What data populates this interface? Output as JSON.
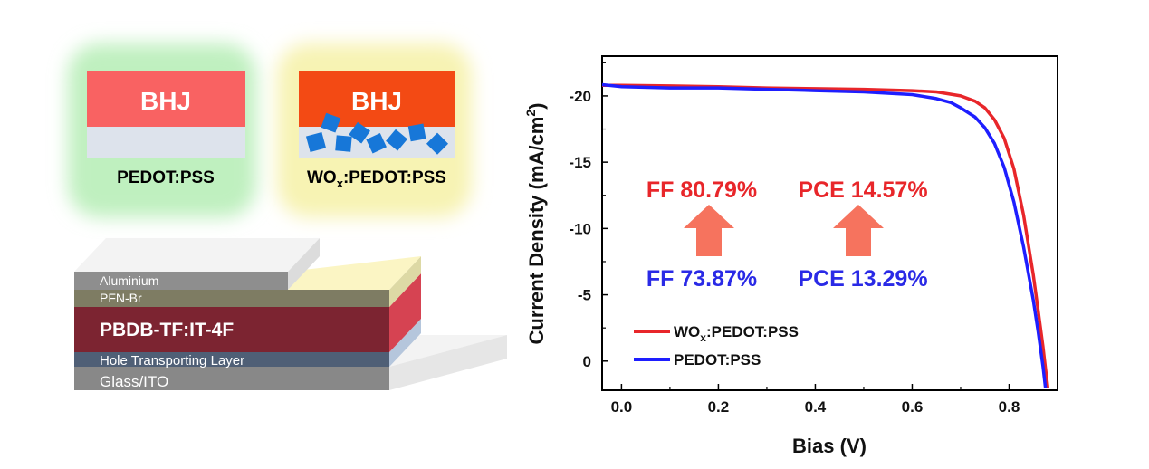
{
  "panels": [
    {
      "bhj_label": "BHJ",
      "caption_main": "PEDOT:PSS",
      "caption_sub": "",
      "caption_rest": "",
      "glow_color": "#bff0bf",
      "bhj_color": "#f96262",
      "base_color": "#dde3ec"
    },
    {
      "bhj_label": "BHJ",
      "caption_main": "WO",
      "caption_sub": "x",
      "caption_rest": ":PEDOT:PSS",
      "glow_color": "#f7f3b3",
      "bhj_color": "#f34a14",
      "base_color": "#dde3ec",
      "particle_color": "#1777d8"
    }
  ],
  "device_layers": [
    {
      "label": "Aluminium",
      "color": "#8e8e8e"
    },
    {
      "label": "PFN-Br",
      "color": "#7e7c63"
    },
    {
      "label": "PBDB-TF:IT-4F",
      "color": "#7c2431"
    },
    {
      "label": "Hole Transporting Layer",
      "color": "#4f5f76"
    },
    {
      "label": "Glass/ITO",
      "color": "#888888"
    }
  ],
  "chart_data": {
    "type": "line",
    "xlabel": "Bias (V)",
    "ylabel_main": "Current Density (mA/cm",
    "ylabel_sup": "2",
    "ylabel_close": ")",
    "xlim": [
      -0.04,
      0.9
    ],
    "ylim": [
      2.2,
      -23
    ],
    "x_ticks": [
      0.0,
      0.2,
      0.4,
      0.6,
      0.8
    ],
    "x_tick_labels": [
      "0.0",
      "0.2",
      "0.4",
      "0.6",
      "0.8"
    ],
    "y_ticks": [
      -20,
      -15,
      -10,
      -5,
      0
    ],
    "y_tick_labels": [
      "-20",
      "-15",
      "-10",
      "-5",
      "0"
    ],
    "series": [
      {
        "name": "WO",
        "name_sub": "x",
        "name_rest": ":PEDOT:PSS",
        "color": "#e8262a",
        "x": [
          -0.04,
          0.0,
          0.1,
          0.2,
          0.3,
          0.4,
          0.5,
          0.6,
          0.65,
          0.7,
          0.73,
          0.75,
          0.77,
          0.79,
          0.81,
          0.83,
          0.85,
          0.86,
          0.87,
          0.875,
          0.88
        ],
        "y": [
          -20.8,
          -20.8,
          -20.75,
          -20.7,
          -20.6,
          -20.55,
          -20.5,
          -20.4,
          -20.3,
          -20.0,
          -19.6,
          -19.1,
          -18.2,
          -16.8,
          -14.5,
          -11.0,
          -6.5,
          -3.8,
          -1.1,
          0.5,
          2.0
        ]
      },
      {
        "name": "PEDOT:PSS",
        "color": "#1e1eff",
        "x": [
          -0.04,
          0.0,
          0.1,
          0.2,
          0.3,
          0.4,
          0.5,
          0.6,
          0.65,
          0.68,
          0.7,
          0.73,
          0.75,
          0.77,
          0.79,
          0.81,
          0.83,
          0.85,
          0.86,
          0.87,
          0.875
        ],
        "y": [
          -20.85,
          -20.7,
          -20.6,
          -20.6,
          -20.5,
          -20.4,
          -20.3,
          -20.1,
          -19.8,
          -19.5,
          -19.1,
          -18.4,
          -17.6,
          -16.4,
          -14.6,
          -12.0,
          -8.6,
          -4.6,
          -2.2,
          0.4,
          2.0
        ]
      }
    ],
    "annotations": {
      "ff_top": "FF 80.79%",
      "pce_top": "PCE 14.57%",
      "ff_bottom": "FF 73.87%",
      "pce_bottom": "PCE 13.29%",
      "top_color": "#e8262a",
      "bottom_color": "#2a2ae6",
      "arrow_color": "#f6735e"
    },
    "legend_position": "bottom-left"
  }
}
